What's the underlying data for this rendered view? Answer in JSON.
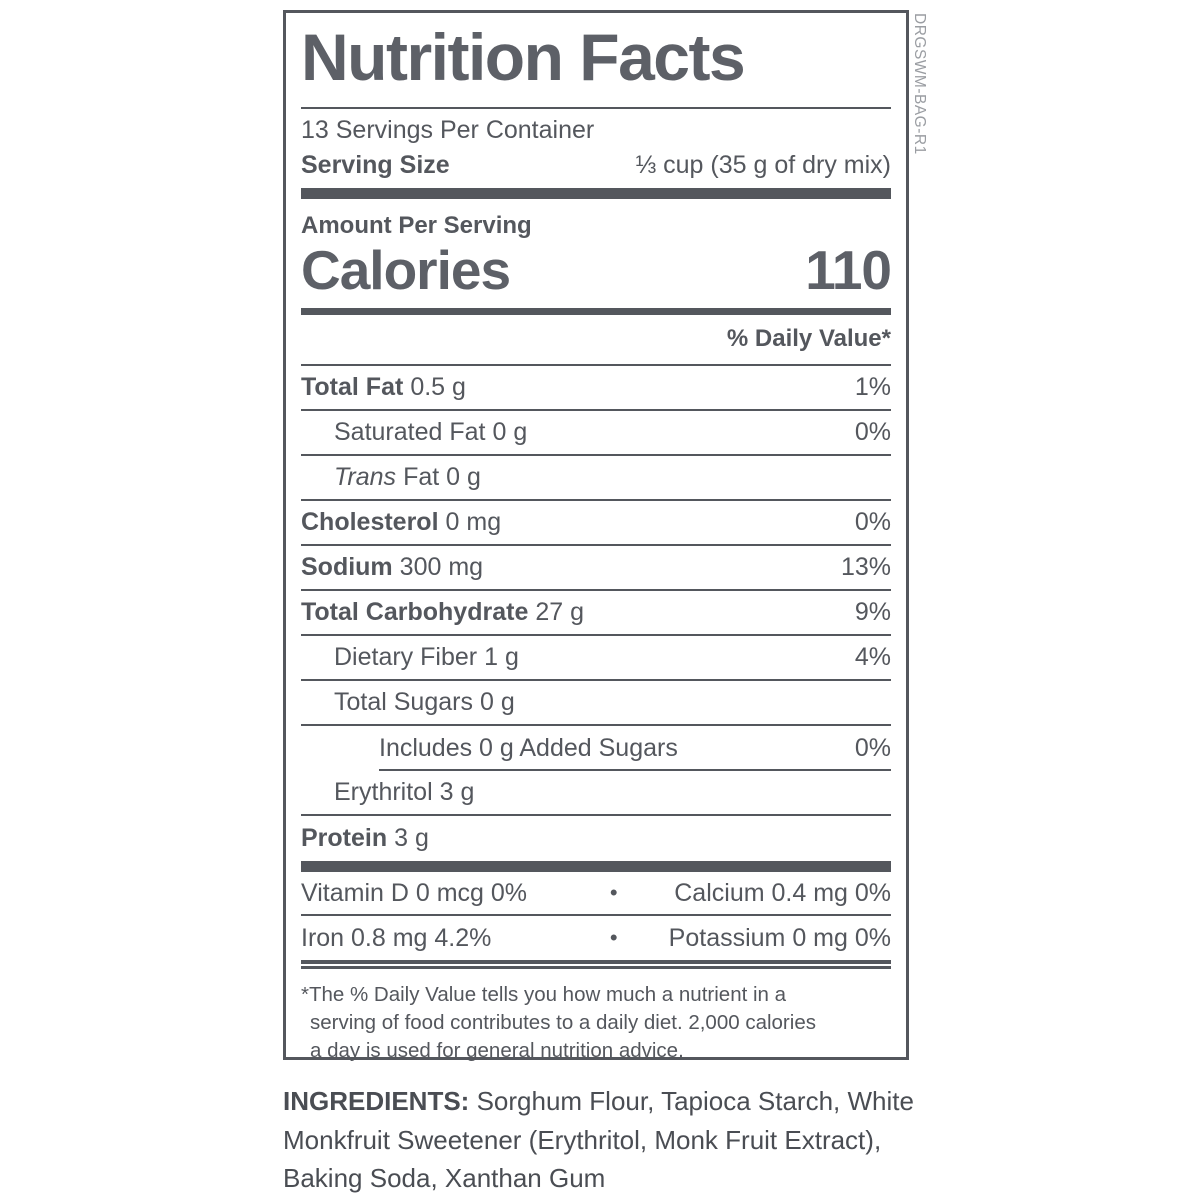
{
  "colors": {
    "text": "#54575d",
    "muted_code": "#9a9da2"
  },
  "side_code": "DRGSWM-BAG-R1",
  "label": {
    "title": "Nutrition Facts",
    "servings_per_container": "13 Servings Per Container",
    "serving_size_label": "Serving Size",
    "serving_size_value": "⅓ cup (35 g of dry mix)",
    "amount_per_serving": "Amount Per Serving",
    "calories_label": "Calories",
    "calories_value": "110",
    "daily_value_header": "% Daily Value*",
    "bullet": "•",
    "rows": [
      {
        "name": "Total Fat",
        "amount": "0.5 g",
        "dv": "1%"
      },
      {
        "name": "Saturated Fat",
        "amount": "0 g",
        "dv": "0%"
      },
      {
        "name": "Trans",
        "amount": "Fat 0 g",
        "dv": ""
      },
      {
        "name": "Cholesterol",
        "amount": "0 mg",
        "dv": "0%"
      },
      {
        "name": "Sodium",
        "amount": "300 mg",
        "dv": "13%"
      },
      {
        "name": "Total Carbohydrate",
        "amount": "27 g",
        "dv": "9%"
      },
      {
        "name": "Dietary Fiber",
        "amount": "1 g",
        "dv": "4%"
      },
      {
        "name": "Total Sugars",
        "amount": "0 g",
        "dv": ""
      },
      {
        "name": "Includes 0 g Added Sugars",
        "amount": "",
        "dv": "0%"
      },
      {
        "name": "Erythritol",
        "amount": "3 g",
        "dv": ""
      },
      {
        "name": "Protein",
        "amount": "3 g",
        "dv": ""
      }
    ],
    "micronutrients": [
      {
        "left": "Vitamin D 0 mcg 0%",
        "right": "Calcium 0.4 mg 0%"
      },
      {
        "left": "Iron 0.8 mg 4.2%",
        "right": "Potassium 0 mg 0%"
      }
    ],
    "footnote_lines": [
      "*The % Daily Value tells you how much a nutrient in a",
      "serving of food contributes to a daily diet. 2,000 calories",
      "a day is used for general nutrition advice."
    ]
  },
  "ingredients": {
    "label": "INGREDIENTS:",
    "text": " Sorghum Flour, Tapioca Starch, White Monkfruit Sweetener (Erythritol, Monk Fruit Extract), Baking Soda, Xanthan Gum"
  }
}
